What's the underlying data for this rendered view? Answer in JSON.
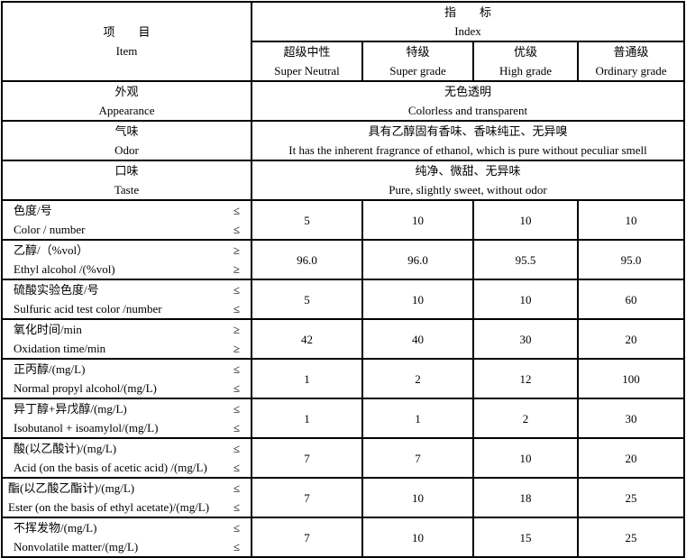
{
  "header": {
    "item_cn": "项　　目",
    "item_en": "Item",
    "index_cn": "指　　标",
    "index_en": "Index",
    "grades": [
      {
        "cn": "超级中性",
        "en": "Super Neutral"
      },
      {
        "cn": "特级",
        "en": "Super grade"
      },
      {
        "cn": "优级",
        "en": "High grade"
      },
      {
        "cn": "普通级",
        "en": "Ordinary grade"
      }
    ]
  },
  "sensory": [
    {
      "cn": "外观",
      "en": "Appearance",
      "value_cn": "无色透明",
      "value_en": "Colorless and transparent"
    },
    {
      "cn": "气味",
      "en": "Odor",
      "value_cn": "具有乙醇固有香味、香味纯正、无异嗅",
      "value_en": "It has the inherent fragrance of ethanol, which is pure without peculiar smell"
    },
    {
      "cn": "口味",
      "en": "Taste",
      "value_cn": "纯净、微甜、无异味",
      "value_en": "Pure, slightly sweet, without odor"
    }
  ],
  "rows": [
    {
      "cn": "色度/号",
      "en": "Color / number",
      "sym": "≤",
      "values": [
        "5",
        "10",
        "10",
        "10"
      ]
    },
    {
      "cn": "乙醇/（%vol）",
      "en": "Ethyl alcohol /(%vol)",
      "sym": "≥",
      "values": [
        "96.0",
        "96.0",
        "95.5",
        "95.0"
      ]
    },
    {
      "cn": "硫酸实验色度/号",
      "en": "Sulfuric acid test color /number",
      "sym": "≤",
      "values": [
        "5",
        "10",
        "10",
        "60"
      ]
    },
    {
      "cn": "氧化时间/min",
      "en": "Oxidation time/min",
      "sym": "≥",
      "values": [
        "42",
        "40",
        "30",
        "20"
      ]
    },
    {
      "cn": "正丙醇/(mg/L)",
      "en": "Normal propyl alcohol/(mg/L)",
      "sym": "≤",
      "values": [
        "1",
        "2",
        "12",
        "100"
      ]
    },
    {
      "cn": "异丁醇+异戊醇/(mg/L)",
      "en": "Isobutanol + isoamylol/(mg/L)",
      "sym": "≤",
      "values": [
        "1",
        "1",
        "2",
        "30"
      ]
    },
    {
      "cn": "酸(以乙酸计)/(mg/L)",
      "en": "Acid (on the basis of acetic acid) /(mg/L)",
      "sym": "≤",
      "values": [
        "7",
        "7",
        "10",
        "20"
      ]
    },
    {
      "cn": "酯(以乙酸乙酯计)/(mg/L)",
      "en": "Ester (on the basis of ethyl acetate)/(mg/L)",
      "sym": "≤",
      "values": [
        "7",
        "10",
        "18",
        "25"
      ]
    },
    {
      "cn": "不挥发物/(mg/L)",
      "en": "Nonvolatile matter/(mg/L)",
      "sym": "≤",
      "values": [
        "7",
        "10",
        "15",
        "25"
      ]
    }
  ]
}
